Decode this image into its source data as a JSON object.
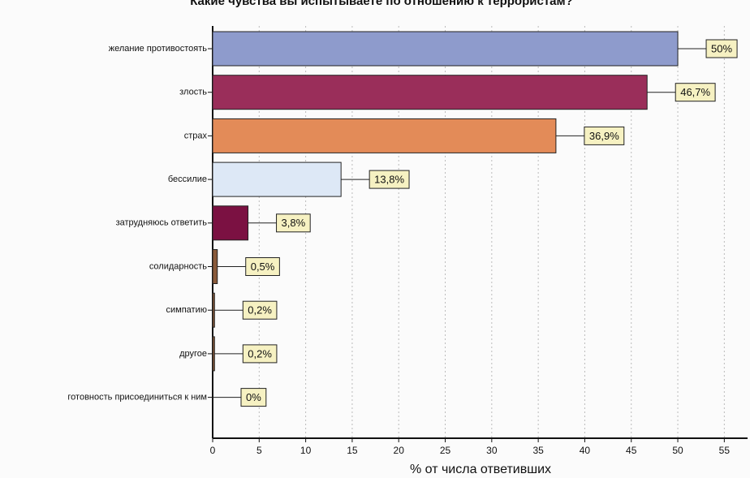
{
  "chart_data": {
    "type": "barh",
    "title": "Какие чувства вы испытываете по отношению к террористам?",
    "x_label": "% от числа ответивших",
    "categories": [
      "желание противостоять",
      "злость",
      "страх",
      "бессилие",
      "затрудняюсь ответить",
      "солидарность",
      "симпатию",
      "другое",
      "готовность присоединиться к ним"
    ],
    "values": [
      50,
      46.7,
      36.9,
      13.8,
      3.8,
      0.5,
      0.2,
      0.2,
      0
    ],
    "value_labels": [
      "50%",
      "46,7%",
      "36,9%",
      "13,8%",
      "3,8%",
      "0,5%",
      "0,2%",
      "0,2%",
      "0%"
    ],
    "colors": [
      "#8e9bcc",
      "#9a2e5a",
      "#e38b58",
      "#dde8f6",
      "#7b1142",
      "#8a5a3a",
      "#8a5a3a",
      "#8a5a3a",
      "#8a5a3a"
    ],
    "xlim": [
      0,
      57.5
    ],
    "xticks": [
      0,
      5,
      10,
      15,
      20,
      25,
      30,
      35,
      40,
      45,
      50,
      55
    ],
    "grid": true
  }
}
